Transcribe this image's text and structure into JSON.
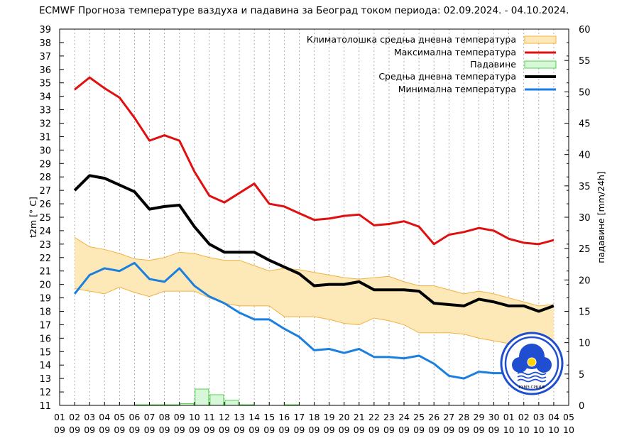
{
  "chart_data": {
    "type": "line",
    "title": "ECMWF Прогноза температуре ваздуха и падавина за Београд током периода: 02.09.2024. - 04.10.2024.",
    "ylabel": "t2m [° C]",
    "y2label": "падавине [mm/24h]",
    "ylim": [
      11,
      39
    ],
    "y2lim": [
      0,
      60
    ],
    "y_ticks": [
      11,
      12,
      13,
      14,
      15,
      16,
      17,
      18,
      19,
      20,
      21,
      22,
      23,
      24,
      25,
      26,
      27,
      28,
      29,
      30,
      31,
      32,
      33,
      34,
      35,
      36,
      37,
      38,
      39
    ],
    "y2_ticks": [
      0,
      5,
      10,
      15,
      20,
      25,
      30,
      35,
      40,
      45,
      50,
      55,
      60
    ],
    "x_tick_days": [
      "01",
      "02",
      "03",
      "04",
      "05",
      "06",
      "07",
      "08",
      "09",
      "10",
      "11",
      "12",
      "13",
      "14",
      "15",
      "16",
      "17",
      "18",
      "19",
      "20",
      "21",
      "22",
      "23",
      "24",
      "25",
      "26",
      "27",
      "28",
      "29",
      "30",
      "01",
      "02",
      "03",
      "04",
      "05"
    ],
    "x_tick_months": [
      "09",
      "09",
      "09",
      "09",
      "09",
      "09",
      "09",
      "09",
      "09",
      "09",
      "09",
      "09",
      "09",
      "09",
      "09",
      "09",
      "09",
      "09",
      "09",
      "09",
      "09",
      "09",
      "09",
      "09",
      "09",
      "09",
      "09",
      "09",
      "09",
      "09",
      "10",
      "10",
      "10",
      "10",
      "10"
    ],
    "grid": "vertical-dashed",
    "legend_position": "top-right",
    "legend": [
      {
        "label": "Климатолошка средња дневна температура",
        "kind": "band"
      },
      {
        "label": "Максимална температура",
        "kind": "line",
        "color": "#e01010"
      },
      {
        "label": "Падавине",
        "kind": "bars",
        "color": "#4cd44c"
      },
      {
        "label": "Средња дневна температура",
        "kind": "line",
        "color": "#000000"
      },
      {
        "label": "Минимална температура",
        "kind": "line",
        "color": "#1a7fe0"
      }
    ],
    "climatology_band": {
      "color_fill": "#fde9b8",
      "color_edge": "#f2b140",
      "upper": [
        23.5,
        22.8,
        22.6,
        22.3,
        21.9,
        21.8,
        22.0,
        22.4,
        22.3,
        22.0,
        21.8,
        21.8,
        21.4,
        21.0,
        21.2,
        21.1,
        20.9,
        20.7,
        20.5,
        20.4,
        20.5,
        20.6,
        20.2,
        19.9,
        19.9,
        19.6,
        19.3,
        19.5,
        19.3,
        19.0,
        18.7,
        18.4,
        18.5
      ],
      "lower": [
        19.7,
        19.5,
        19.3,
        19.8,
        19.4,
        19.1,
        19.5,
        19.5,
        19.5,
        19.0,
        18.6,
        18.4,
        18.4,
        18.4,
        17.6,
        17.6,
        17.6,
        17.4,
        17.1,
        17.0,
        17.5,
        17.3,
        17.0,
        16.4,
        16.4,
        16.4,
        16.3,
        16.0,
        15.8,
        15.6,
        15.4,
        15.3,
        15.2
      ]
    },
    "series": [
      {
        "name": "Максимална температура",
        "color": "#e01010",
        "values": [
          34.5,
          35.4,
          34.6,
          33.9,
          32.4,
          30.7,
          31.1,
          30.7,
          28.4,
          26.6,
          26.1,
          26.8,
          27.5,
          26.0,
          25.8,
          25.3,
          24.8,
          24.9,
          25.1,
          25.2,
          24.4,
          24.5,
          24.7,
          24.3,
          23.0,
          23.7,
          23.9,
          24.2,
          24.0,
          23.4,
          23.1,
          23.0,
          23.3
        ]
      },
      {
        "name": "Средња дневна температура",
        "color": "#000000",
        "values": [
          27.0,
          28.1,
          27.9,
          27.4,
          26.9,
          25.6,
          25.8,
          25.9,
          24.3,
          23.0,
          22.4,
          22.4,
          22.4,
          21.8,
          21.3,
          20.8,
          19.9,
          20.0,
          20.0,
          20.2,
          19.6,
          19.6,
          19.6,
          19.5,
          18.6,
          18.5,
          18.4,
          18.9,
          18.7,
          18.4,
          18.4,
          18.0,
          18.4
        ]
      },
      {
        "name": "Минимална температура",
        "color": "#1a7fe0",
        "values": [
          19.3,
          20.7,
          21.2,
          21.0,
          21.6,
          20.4,
          20.2,
          21.2,
          19.9,
          19.1,
          18.6,
          17.9,
          17.4,
          17.4,
          16.7,
          16.1,
          15.1,
          15.2,
          14.9,
          15.2,
          14.6,
          14.6,
          14.5,
          14.7,
          14.1,
          13.2,
          13.0,
          13.5,
          13.4,
          13.4,
          13.3,
          12.8,
          13.0
        ]
      }
    ],
    "precipitation": {
      "name": "Падавине",
      "color": "#4cd44c",
      "fill": "#d8f7d8",
      "days": [
        "06",
        "07",
        "08",
        "09",
        "10",
        "11",
        "12",
        "13",
        "16"
      ],
      "values": [
        0.1,
        0.1,
        0.1,
        0.3,
        2.6,
        1.7,
        0.8,
        0.1,
        0.1
      ]
    }
  },
  "logo": {
    "text": "РХМЗ СРБИЈЕ",
    "color": "#1f4fd0"
  }
}
